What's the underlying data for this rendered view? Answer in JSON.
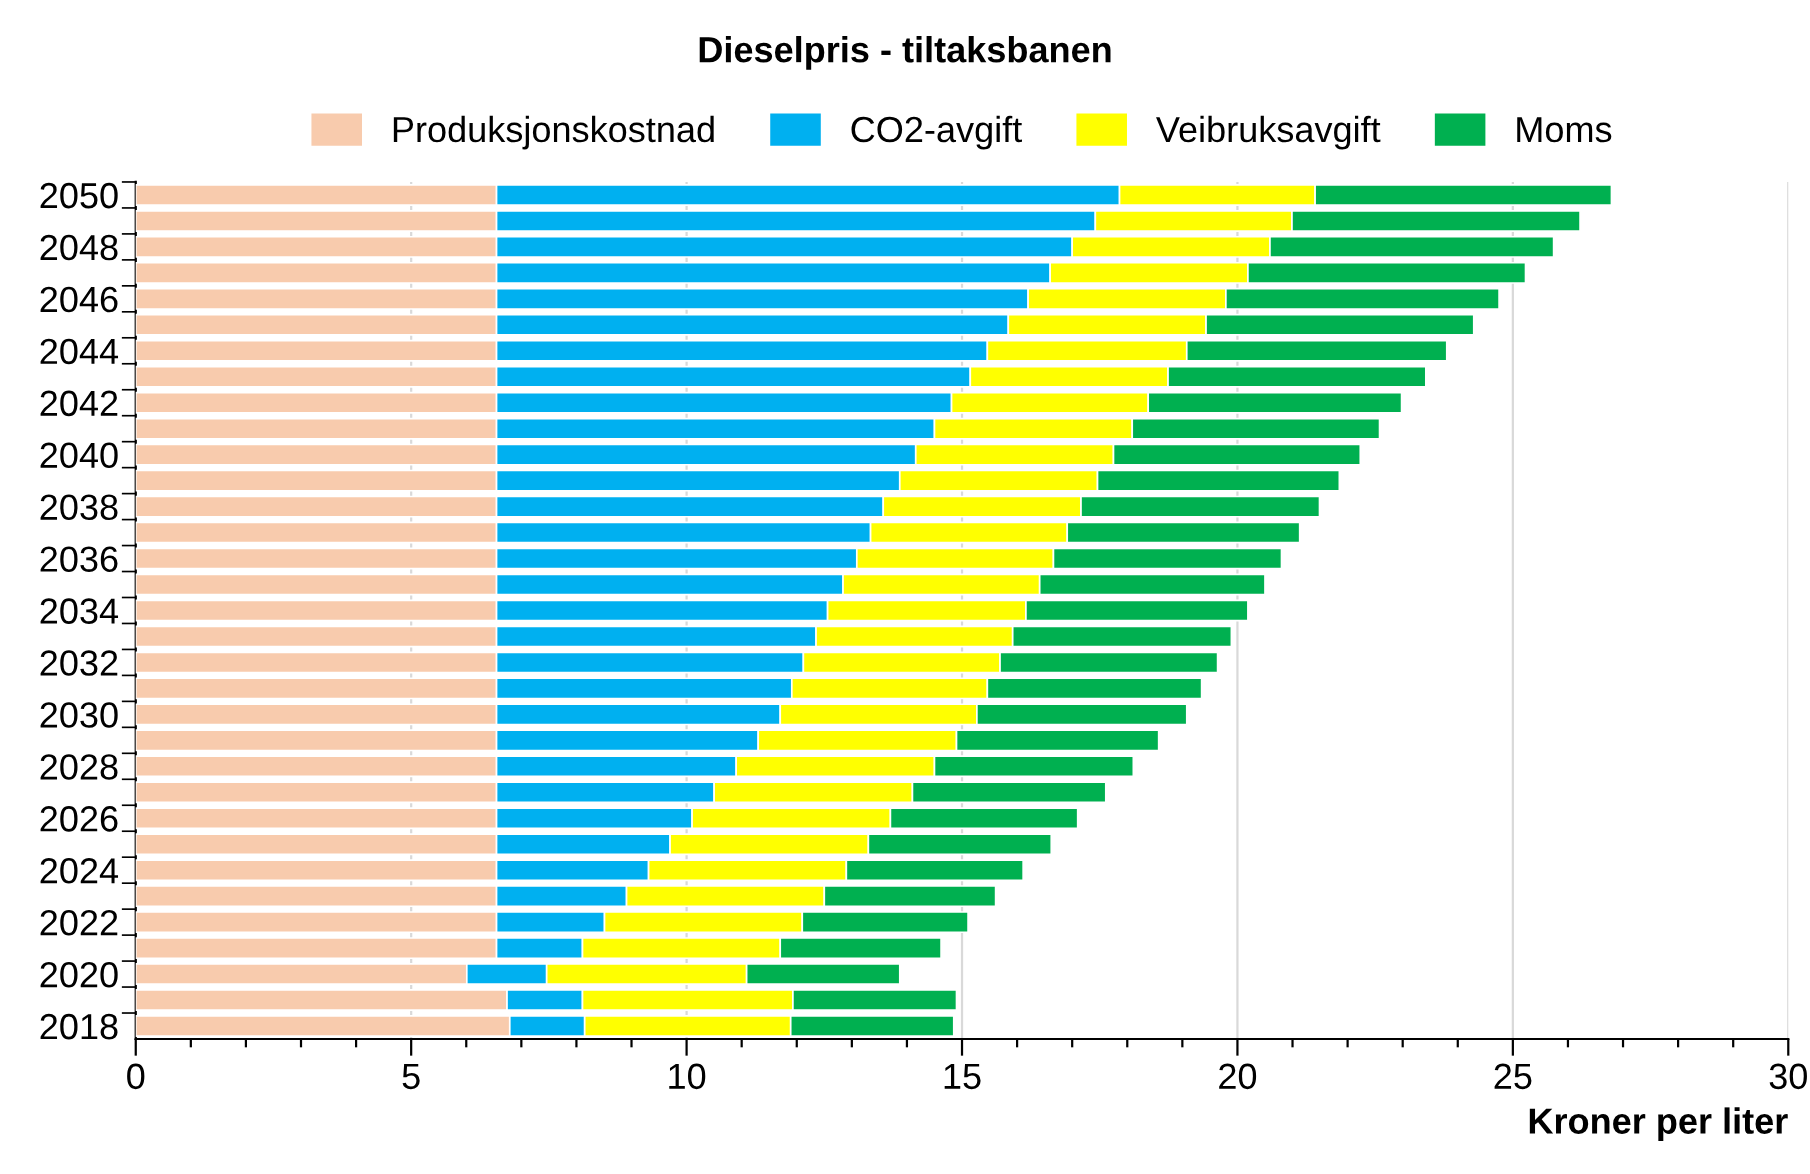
{
  "chart_data": {
    "type": "bar",
    "orientation": "horizontal",
    "stacked": true,
    "title": "Dieselpris - tiltaksbanen",
    "xlabel": "Kroner per liter",
    "categories": [
      "2050",
      null,
      "2048",
      null,
      "2046",
      null,
      "2044",
      null,
      "2042",
      null,
      "2040",
      null,
      "2038",
      null,
      "2036",
      null,
      "2034",
      null,
      "2032",
      null,
      "2030",
      null,
      "2028",
      null,
      "2026",
      null,
      "2024",
      null,
      "2022",
      null,
      "2020",
      null,
      "2018"
    ],
    "series": [
      {
        "name": "Produksjonskostnad",
        "color": "#f8cbad",
        "values": [
          6.55,
          6.55,
          6.55,
          6.55,
          6.55,
          6.55,
          6.55,
          6.55,
          6.55,
          6.55,
          6.55,
          6.55,
          6.55,
          6.55,
          6.55,
          6.55,
          6.55,
          6.55,
          6.55,
          6.55,
          6.55,
          6.55,
          6.55,
          6.55,
          6.55,
          6.55,
          6.55,
          6.55,
          6.55,
          6.55,
          6.01,
          6.74,
          6.79
        ]
      },
      {
        "name": "CO2-avgift",
        "color": "#00b0f0",
        "values": [
          11.31,
          10.87,
          10.45,
          10.05,
          9.65,
          9.29,
          8.91,
          8.6,
          8.26,
          7.95,
          7.61,
          7.32,
          7.02,
          6.79,
          6.54,
          6.29,
          6.01,
          5.8,
          5.57,
          5.36,
          5.15,
          4.75,
          4.35,
          3.95,
          3.55,
          3.15,
          2.76,
          2.36,
          1.96,
          1.56,
          1.45,
          1.37,
          1.36
        ]
      },
      {
        "name": "Veibruksavgift",
        "color": "#ffff00",
        "values": [
          3.55,
          3.57,
          3.59,
          3.59,
          3.59,
          3.59,
          3.62,
          3.59,
          3.57,
          3.59,
          3.59,
          3.59,
          3.59,
          3.57,
          3.57,
          3.57,
          3.6,
          3.57,
          3.57,
          3.55,
          3.57,
          3.6,
          3.6,
          3.6,
          3.6,
          3.6,
          3.59,
          3.59,
          3.59,
          3.59,
          3.63,
          3.82,
          3.74
        ]
      },
      {
        "name": "Moms",
        "color": "#00b050",
        "values": [
          5.38,
          5.23,
          5.15,
          5.04,
          4.96,
          4.86,
          4.72,
          4.68,
          4.6,
          4.49,
          4.48,
          4.39,
          4.33,
          4.22,
          4.14,
          4.09,
          4.03,
          3.97,
          3.95,
          3.89,
          3.81,
          3.67,
          3.61,
          3.51,
          3.4,
          3.32,
          3.21,
          3.11,
          3.01,
          2.92,
          2.78,
          2.97,
          2.96
        ]
      }
    ],
    "xlim": [
      0,
      30
    ],
    "xticks": [
      0,
      {
        "value": 1,
        "label": null
      },
      {
        "value": 2,
        "label": null
      },
      {
        "value": 3,
        "label": null
      },
      {
        "value": 4,
        "label": null
      },
      5,
      {
        "value": 6,
        "label": null
      },
      {
        "value": 7,
        "label": null
      },
      {
        "value": 8,
        "label": null
      },
      {
        "value": 9,
        "label": null
      },
      10,
      {
        "value": 11,
        "label": null
      },
      {
        "value": 12,
        "label": null
      },
      {
        "value": 13,
        "label": null
      },
      {
        "value": 14,
        "label": null
      },
      15,
      {
        "value": 16,
        "label": null
      },
      {
        "value": 17,
        "label": null
      },
      {
        "value": 18,
        "label": null
      },
      {
        "value": 19,
        "label": null
      },
      20,
      {
        "value": 21,
        "label": null
      },
      {
        "value": 22,
        "label": null
      },
      {
        "value": 23,
        "label": null
      },
      {
        "value": 24,
        "label": null
      },
      25,
      {
        "value": 26,
        "label": null
      },
      {
        "value": 27,
        "label": null
      },
      {
        "value": 28,
        "label": null
      },
      {
        "value": 29,
        "label": null
      },
      30
    ],
    "grid": "x",
    "legend": "top"
  }
}
